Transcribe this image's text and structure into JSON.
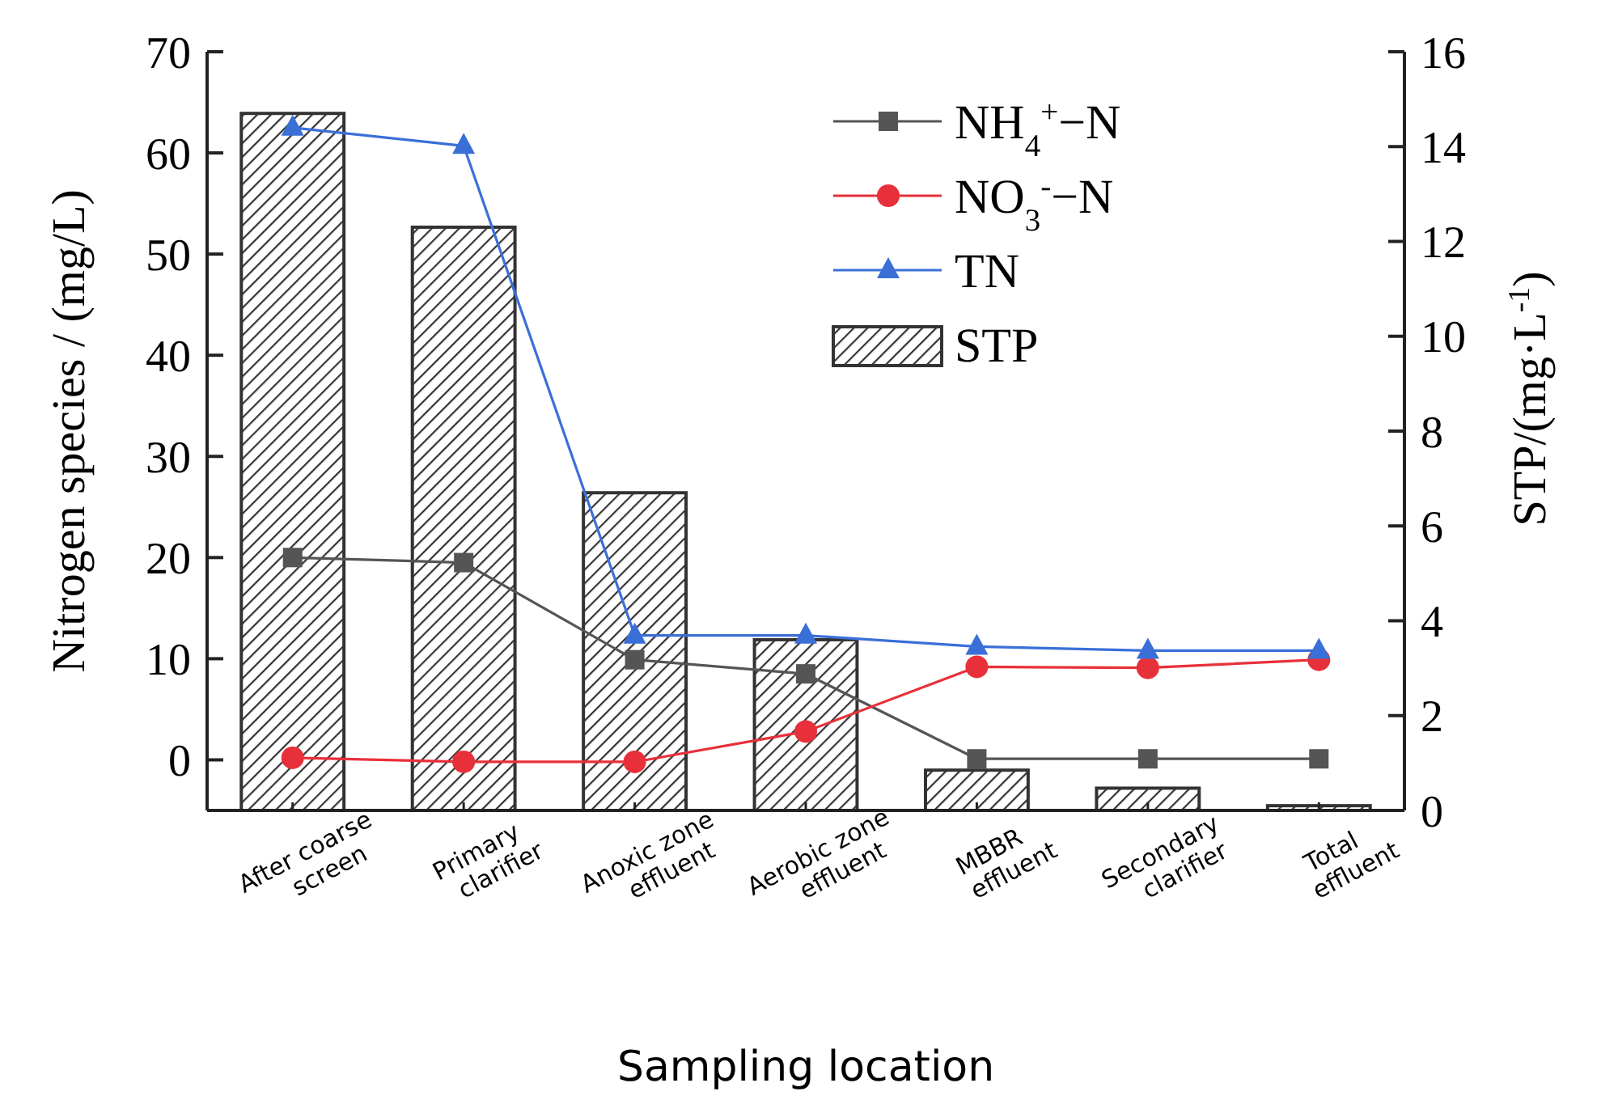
{
  "chart_data": {
    "type": "line",
    "xlabel": "Sampling location",
    "ylabel": "Nitrogen species / (mg/L)",
    "y2label": "STP/(mg·L$^{-1}$)",
    "categories": [
      "After coarse screen",
      "Primary clarifier",
      "Anoxic zone effluent",
      "Aerobic zone effluent",
      "MBBR effluent",
      "Secondary clarifier",
      "Total effluent"
    ],
    "series": [
      {
        "name": "NH$_{4}$$^{+}$−N",
        "marker": "square",
        "color": "#555555",
        "values": [
          20,
          19.5,
          9.9,
          8.5,
          0.1,
          0.1,
          0.1
        ]
      },
      {
        "name": "NO$_{3}$$^{-}$−N",
        "marker": "circle",
        "color": "#e8303a",
        "values": [
          0.2,
          -0.2,
          -0.2,
          2.8,
          9.2,
          9.1,
          9.9
        ]
      },
      {
        "name": "TN",
        "marker": "triangle",
        "color": "#3a6fd8",
        "values": [
          62.5,
          60.7,
          12.3,
          12.3,
          11.2,
          10.8,
          10.8
        ]
      },
      {
        "name": "STP",
        "type": "bar",
        "axis": "y2",
        "color": "#333333",
        "values": [
          14.7,
          12.3,
          6.7,
          3.6,
          0.85,
          0.47,
          0.1
        ]
      }
    ],
    "ylim": [
      -5,
      70
    ],
    "yticks": [
      0,
      10,
      20,
      30,
      40,
      50,
      60,
      70
    ],
    "y2lim": [
      0,
      16
    ],
    "y2ticks": [
      0,
      2,
      4,
      6,
      8,
      10,
      12,
      14,
      16
    ],
    "legend": "top right"
  }
}
